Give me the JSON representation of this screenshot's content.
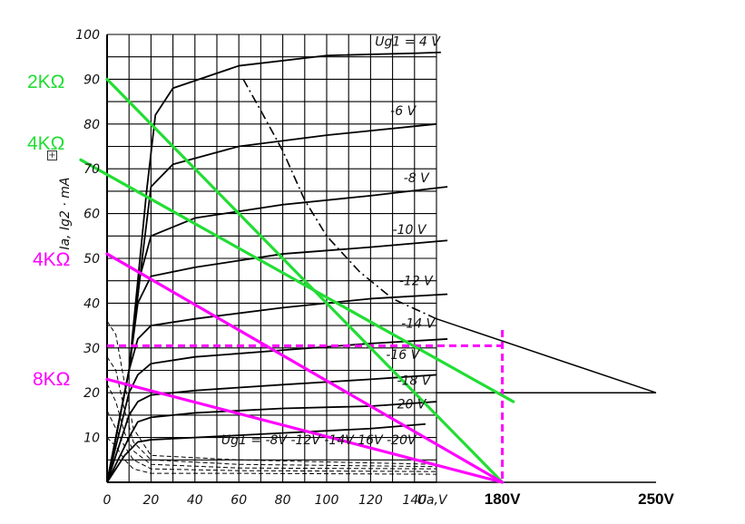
{
  "chart_data": {
    "type": "line",
    "title": "",
    "xlabel": "Ua,V",
    "ylabel": "Ia, Ig2 · mA",
    "xlim": [
      0,
      150
    ],
    "ylim": [
      0,
      100
    ],
    "grid": true,
    "x_ticks": [
      "0",
      "20",
      "40",
      "60",
      "80",
      "100",
      "120",
      "140"
    ],
    "y_ticks": [
      "10",
      "20",
      "30",
      "40",
      "50",
      "60",
      "70",
      "80",
      "90",
      "100"
    ],
    "extended_x_labels": [
      {
        "label": "180V",
        "x": 180
      },
      {
        "label": "250V",
        "x": 250
      }
    ],
    "plate_curves": [
      {
        "name": "Ug1 = 4 V",
        "points": [
          [
            0,
            0
          ],
          [
            10,
            25
          ],
          [
            18,
            65
          ],
          [
            22,
            82
          ],
          [
            30,
            88
          ],
          [
            60,
            93
          ],
          [
            100,
            95.3
          ],
          [
            140,
            95.8
          ],
          [
            152,
            96
          ]
        ]
      },
      {
        "name": "-6 V",
        "points": [
          [
            0,
            0
          ],
          [
            10,
            25
          ],
          [
            16,
            50
          ],
          [
            20,
            66
          ],
          [
            30,
            71
          ],
          [
            60,
            75
          ],
          [
            100,
            77.5
          ],
          [
            150,
            80
          ]
        ]
      },
      {
        "name": "-8 V",
        "points": [
          [
            0,
            0
          ],
          [
            10,
            25
          ],
          [
            15,
            46
          ],
          [
            20,
            55
          ],
          [
            40,
            59
          ],
          [
            80,
            62
          ],
          [
            120,
            64
          ],
          [
            155,
            66
          ]
        ]
      },
      {
        "name": "-10 V",
        "points": [
          [
            0,
            0
          ],
          [
            10,
            25
          ],
          [
            14,
            40
          ],
          [
            20,
            46
          ],
          [
            40,
            48
          ],
          [
            80,
            51
          ],
          [
            120,
            52.5
          ],
          [
            155,
            54
          ]
        ]
      },
      {
        "name": "-12 V",
        "points": [
          [
            0,
            0
          ],
          [
            10,
            25
          ],
          [
            14,
            32
          ],
          [
            20,
            35
          ],
          [
            40,
            36.5
          ],
          [
            80,
            39
          ],
          [
            120,
            41
          ],
          [
            155,
            42
          ]
        ]
      },
      {
        "name": "-14 V",
        "points": [
          [
            0,
            0
          ],
          [
            10,
            20
          ],
          [
            14,
            24
          ],
          [
            20,
            26.5
          ],
          [
            40,
            28
          ],
          [
            80,
            29.5
          ],
          [
            120,
            31
          ],
          [
            155,
            32
          ]
        ]
      },
      {
        "name": "-16 V",
        "points": [
          [
            0,
            0
          ],
          [
            10,
            15
          ],
          [
            14,
            18
          ],
          [
            20,
            19.5
          ],
          [
            40,
            20.5
          ],
          [
            80,
            21.8
          ],
          [
            120,
            23
          ],
          [
            150,
            24
          ]
        ]
      },
      {
        "name": "-18 V",
        "points": [
          [
            0,
            0
          ],
          [
            10,
            10
          ],
          [
            14,
            13.5
          ],
          [
            20,
            14.5
          ],
          [
            40,
            15.5
          ],
          [
            80,
            16.5
          ],
          [
            120,
            17
          ],
          [
            150,
            18
          ]
        ]
      },
      {
        "name": "-20 V",
        "points": [
          [
            0,
            0
          ],
          [
            8,
            6
          ],
          [
            14,
            9
          ],
          [
            20,
            9.5
          ],
          [
            40,
            10
          ],
          [
            80,
            11
          ],
          [
            120,
            12
          ],
          [
            145,
            13
          ]
        ]
      }
    ],
    "screen_grid_curve_labels": [
      "Ug1 = -8V",
      "-12V",
      "-14V",
      "16V",
      "-20V"
    ],
    "max_dissipation_curve": [
      [
        62,
        90
      ],
      [
        70,
        83
      ],
      [
        80,
        74
      ],
      [
        90,
        63
      ],
      [
        100,
        55
      ],
      [
        115,
        47
      ],
      [
        130,
        41
      ],
      [
        150,
        36.5
      ]
    ],
    "load_lines": [
      {
        "label": "2KΩ",
        "color": "#22dd33",
        "from": [
          0,
          90
        ],
        "to": [
          180,
          0
        ]
      },
      {
        "label": "4KΩ",
        "color": "#22dd33",
        "from": [
          -12,
          72
        ],
        "to": [
          185,
          18
        ]
      },
      {
        "label": "4KΩ",
        "color": "#ff00ff",
        "from": [
          0,
          51
        ],
        "to": [
          180,
          0
        ]
      },
      {
        "label": "8KΩ",
        "color": "#ff00ff",
        "from": [
          0,
          23
        ],
        "to": [
          180,
          0
        ]
      }
    ],
    "annotations": {
      "horizontal_dashed_y": 30.5,
      "vertical_dashed_x": 180,
      "dashed_color": "#ff00ff"
    }
  }
}
